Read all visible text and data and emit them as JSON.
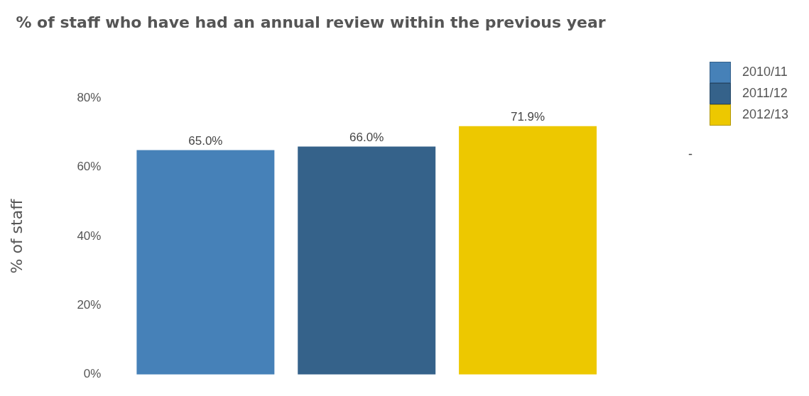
{
  "chart_data": {
    "type": "bar",
    "title": "% of staff who have had an annual review within the previous year",
    "ylabel": "% of staff",
    "categories": [
      null
    ],
    "series": [
      {
        "name": "2010/11",
        "color": "#4681b8",
        "values": [
          65.0
        ],
        "value_labels": [
          "65.0%"
        ]
      },
      {
        "name": "2011/12",
        "color": "#35628a",
        "values": [
          66.0
        ],
        "value_labels": [
          "66.0%"
        ]
      },
      {
        "name": "2012/13",
        "color": "#edc800",
        "values": [
          71.9
        ],
        "value_labels": [
          "71.9%"
        ]
      }
    ],
    "ylim": [
      0,
      80
    ],
    "yticks": [
      {
        "value": 0,
        "label": "0%"
      },
      {
        "value": 20,
        "label": "20%"
      },
      {
        "value": 40,
        "label": "40%"
      },
      {
        "value": 60,
        "label": "60%"
      },
      {
        "value": 80,
        "label": "80%"
      }
    ],
    "tick_labels": "y",
    "grid": false,
    "legend": "top right",
    "annotations": [
      "-"
    ]
  }
}
